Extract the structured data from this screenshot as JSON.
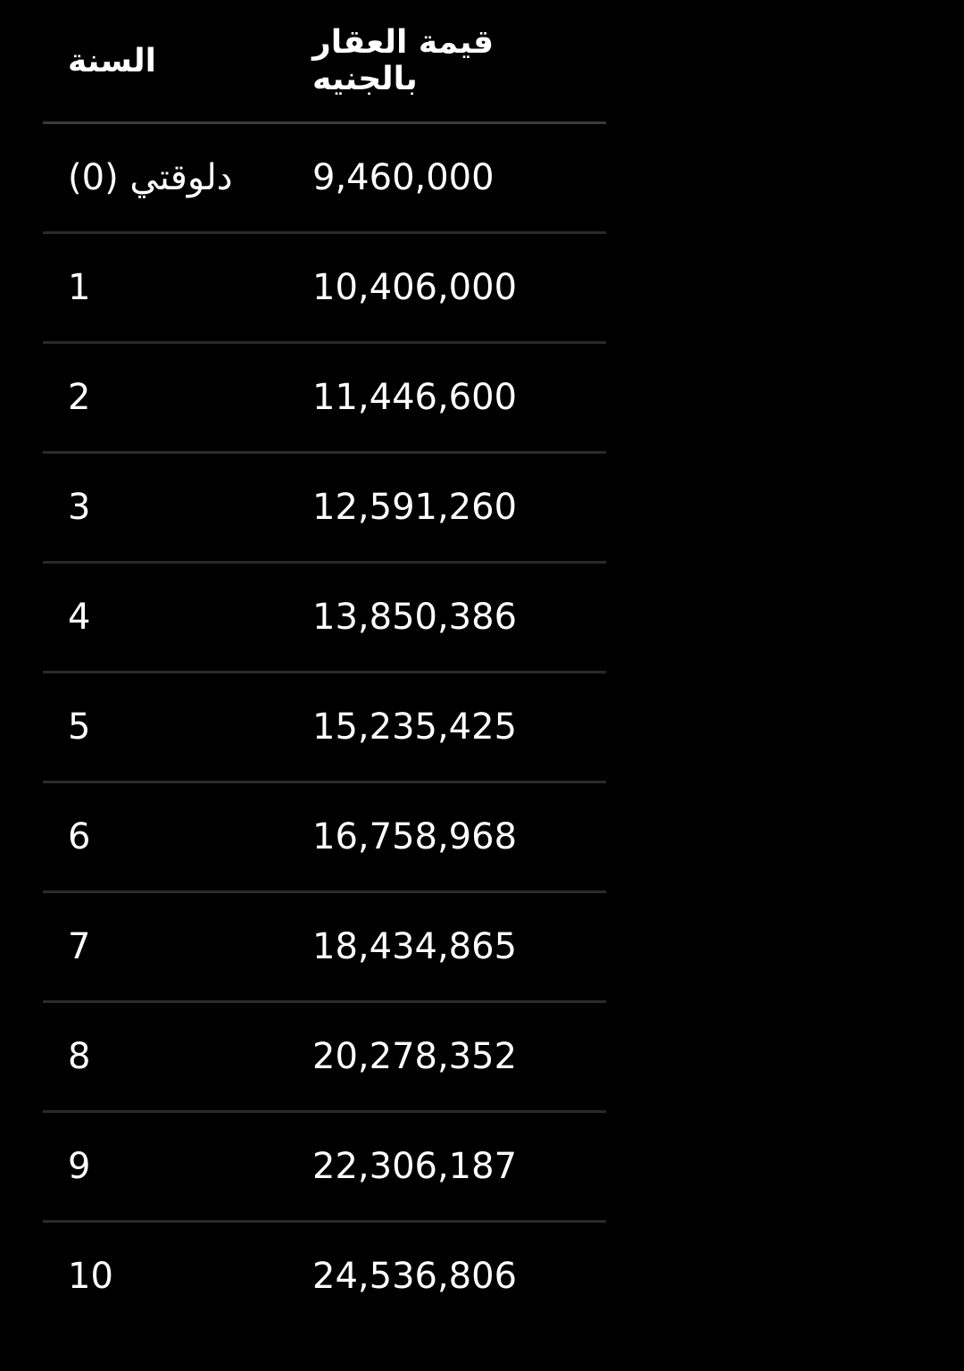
{
  "table": {
    "headers": [
      "السنة",
      "قيمة العقار بالجنيه"
    ],
    "rows": [
      [
        "دلوقتي (0)",
        "9,460,000"
      ],
      [
        "1",
        "10,406,000"
      ],
      [
        "2",
        "11,446,600"
      ],
      [
        "3",
        "12,591,260"
      ],
      [
        "4",
        "13,850,386"
      ],
      [
        "5",
        "15,235,425"
      ],
      [
        "6",
        "16,758,968"
      ],
      [
        "7",
        "18,434,865"
      ],
      [
        "8",
        "20,278,352"
      ],
      [
        "9",
        "22,306,187"
      ],
      [
        "10",
        "24,536,806"
      ]
    ]
  }
}
